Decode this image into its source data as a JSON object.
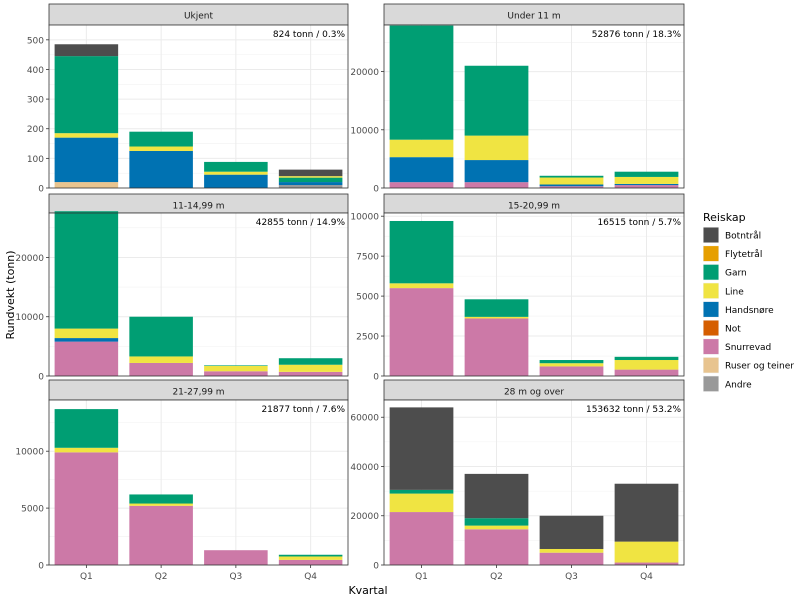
{
  "chart_data": {
    "type": "bar",
    "stacked": true,
    "faceted": true,
    "xlabel": "Kvartal",
    "ylabel": "Rundvekt (tonn)",
    "legend_title": "Reiskap",
    "legend_position": "right",
    "grid": true,
    "categories": [
      "Q1",
      "Q2",
      "Q3",
      "Q4"
    ],
    "series": [
      {
        "name": "Botntrål",
        "color": "#4D4D4D"
      },
      {
        "name": "Flytetrål",
        "color": "#E69F00"
      },
      {
        "name": "Garn",
        "color": "#009E73"
      },
      {
        "name": "Line",
        "color": "#F0E442"
      },
      {
        "name": "Handsnøre",
        "color": "#0072B2"
      },
      {
        "name": "Not",
        "color": "#D55E00"
      },
      {
        "name": "Snurrevad",
        "color": "#CC79A7"
      },
      {
        "name": "Ruser og teiner",
        "color": "#E8C48F"
      },
      {
        "name": "Andre",
        "color": "#999999"
      }
    ],
    "panels": [
      {
        "title": "Ukjent",
        "annotation": "824 tonn / 0.3%",
        "ylim": [
          0,
          550
        ],
        "yticks": [
          0,
          100,
          200,
          300,
          400,
          500
        ],
        "stacks": [
          [
            {
              "s": "Ruser og teiner",
              "v": 20
            },
            {
              "s": "Handsnøre",
              "v": 150
            },
            {
              "s": "Line",
              "v": 15
            },
            {
              "s": "Garn",
              "v": 260
            },
            {
              "s": "Botntrål",
              "v": 40
            }
          ],
          [
            {
              "s": "Handsnøre",
              "v": 125
            },
            {
              "s": "Line",
              "v": 15
            },
            {
              "s": "Garn",
              "v": 50
            }
          ],
          [
            {
              "s": "Handsnøre",
              "v": 45
            },
            {
              "s": "Line",
              "v": 10
            },
            {
              "s": "Garn",
              "v": 33
            }
          ],
          [
            {
              "s": "Andre",
              "v": 10
            },
            {
              "s": "Handsnøre",
              "v": 10
            },
            {
              "s": "Garn",
              "v": 15
            },
            {
              "s": "Line",
              "v": 5
            },
            {
              "s": "Botntrål",
              "v": 22
            }
          ]
        ]
      },
      {
        "title": "Under 11 m",
        "annotation": "52876 tonn / 18.3%",
        "ylim": [
          0,
          28000
        ],
        "yticks": [
          0,
          10000,
          20000
        ],
        "stacks": [
          [
            {
              "s": "Snurrevad",
              "v": 1000
            },
            {
              "s": "Handsnøre",
              "v": 4300
            },
            {
              "s": "Line",
              "v": 3000
            },
            {
              "s": "Garn",
              "v": 19600
            }
          ],
          [
            {
              "s": "Snurrevad",
              "v": 1000
            },
            {
              "s": "Handsnøre",
              "v": 3800
            },
            {
              "s": "Line",
              "v": 4200
            },
            {
              "s": "Garn",
              "v": 12000
            }
          ],
          [
            {
              "s": "Snurrevad",
              "v": 300
            },
            {
              "s": "Handsnøre",
              "v": 300
            },
            {
              "s": "Line",
              "v": 1200
            },
            {
              "s": "Garn",
              "v": 300
            }
          ],
          [
            {
              "s": "Snurrevad",
              "v": 500
            },
            {
              "s": "Handsnøre",
              "v": 200
            },
            {
              "s": "Line",
              "v": 1200
            },
            {
              "s": "Garn",
              "v": 900
            }
          ]
        ]
      },
      {
        "title": "11-14,99 m",
        "annotation": "42855 tonn / 14.9%",
        "ylim": [
          0,
          27500
        ],
        "yticks": [
          0,
          10000,
          20000
        ],
        "stacks": [
          [
            {
              "s": "Snurrevad",
              "v": 5800
            },
            {
              "s": "Handsnøre",
              "v": 600
            },
            {
              "s": "Line",
              "v": 1600
            },
            {
              "s": "Garn",
              "v": 19800
            }
          ],
          [
            {
              "s": "Snurrevad",
              "v": 2200
            },
            {
              "s": "Line",
              "v": 1100
            },
            {
              "s": "Garn",
              "v": 6700
            }
          ],
          [
            {
              "s": "Snurrevad",
              "v": 800
            },
            {
              "s": "Line",
              "v": 900
            },
            {
              "s": "Garn",
              "v": 100
            }
          ],
          [
            {
              "s": "Snurrevad",
              "v": 700
            },
            {
              "s": "Line",
              "v": 1200
            },
            {
              "s": "Garn",
              "v": 1100
            }
          ]
        ]
      },
      {
        "title": "15-20,99 m",
        "annotation": "16515 tonn / 5.7%",
        "ylim": [
          0,
          10200
        ],
        "yticks": [
          0,
          2500,
          5000,
          7500,
          10000
        ],
        "stacks": [
          [
            {
              "s": "Snurrevad",
              "v": 5500
            },
            {
              "s": "Line",
              "v": 300
            },
            {
              "s": "Garn",
              "v": 3900
            }
          ],
          [
            {
              "s": "Snurrevad",
              "v": 3600
            },
            {
              "s": "Line",
              "v": 100
            },
            {
              "s": "Garn",
              "v": 1100
            }
          ],
          [
            {
              "s": "Snurrevad",
              "v": 600
            },
            {
              "s": "Line",
              "v": 200
            },
            {
              "s": "Garn",
              "v": 200
            }
          ],
          [
            {
              "s": "Snurrevad",
              "v": 400
            },
            {
              "s": "Line",
              "v": 600
            },
            {
              "s": "Garn",
              "v": 200
            }
          ]
        ]
      },
      {
        "title": "21-27,99 m",
        "annotation": "21877 tonn / 7.6%",
        "ylim": [
          0,
          14500
        ],
        "yticks": [
          0,
          5000,
          10000
        ],
        "stacks": [
          [
            {
              "s": "Snurrevad",
              "v": 9900
            },
            {
              "s": "Line",
              "v": 400
            },
            {
              "s": "Garn",
              "v": 3400
            }
          ],
          [
            {
              "s": "Snurrevad",
              "v": 5200
            },
            {
              "s": "Line",
              "v": 200
            },
            {
              "s": "Garn",
              "v": 800
            }
          ],
          [
            {
              "s": "Snurrevad",
              "v": 1300
            }
          ],
          [
            {
              "s": "Snurrevad",
              "v": 450
            },
            {
              "s": "Line",
              "v": 300
            },
            {
              "s": "Garn",
              "v": 150
            }
          ]
        ]
      },
      {
        "title": "28 m og over",
        "annotation": "153632 tonn / 53.2%",
        "ylim": [
          0,
          67000
        ],
        "yticks": [
          0,
          20000,
          40000,
          60000
        ],
        "stacks": [
          [
            {
              "s": "Snurrevad",
              "v": 21500
            },
            {
              "s": "Line",
              "v": 7500
            },
            {
              "s": "Garn",
              "v": 1500
            },
            {
              "s": "Botntrål",
              "v": 33500
            }
          ],
          [
            {
              "s": "Snurrevad",
              "v": 14500
            },
            {
              "s": "Line",
              "v": 1500
            },
            {
              "s": "Garn",
              "v": 3000
            },
            {
              "s": "Botntrål",
              "v": 18000
            }
          ],
          [
            {
              "s": "Snurrevad",
              "v": 5000
            },
            {
              "s": "Line",
              "v": 1500
            },
            {
              "s": "Botntrål",
              "v": 13500
            }
          ],
          [
            {
              "s": "Snurrevad",
              "v": 1000
            },
            {
              "s": "Line",
              "v": 8500
            },
            {
              "s": "Botntrål",
              "v": 23500
            }
          ]
        ]
      }
    ]
  }
}
